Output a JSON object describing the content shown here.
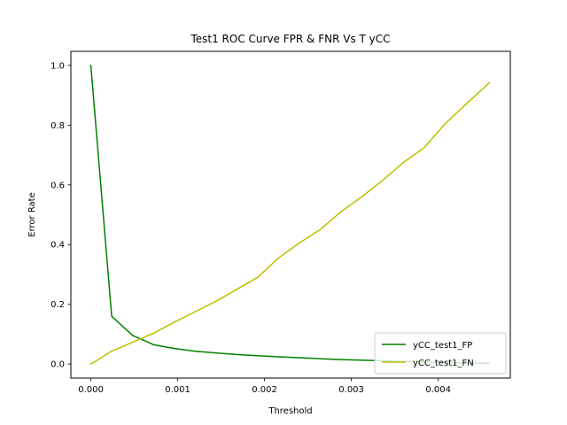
{
  "chart_data": {
    "type": "line",
    "title": "Test1 ROC Curve FPR & FNR Vs T yCC",
    "xlabel": "Threshold",
    "ylabel": "Error Rate",
    "xlim": [
      -0.00023,
      0.00483
    ],
    "ylim": [
      -0.047,
      1.047
    ],
    "xticks": [
      0.0,
      0.001,
      0.002,
      0.003,
      0.004
    ],
    "xtick_labels": [
      "0.000",
      "0.001",
      "0.002",
      "0.003",
      "0.004"
    ],
    "yticks": [
      0.0,
      0.2,
      0.4,
      0.6,
      0.8,
      1.0
    ],
    "ytick_labels": [
      "0.0",
      "0.2",
      "0.4",
      "0.6",
      "0.8",
      "1.0"
    ],
    "grid": false,
    "legend_position": "lower-right",
    "series": [
      {
        "name": "yCC_test1_FP",
        "color": "#008000",
        "x": [
          0.0,
          0.00024,
          0.00048,
          0.00072,
          0.00096,
          0.0012,
          0.00144,
          0.00168,
          0.00192,
          0.00216,
          0.0024,
          0.00264,
          0.00288,
          0.00312,
          0.00336,
          0.0036,
          0.00384,
          0.00408,
          0.00432,
          0.00459
        ],
        "values": [
          1.0,
          0.16,
          0.096,
          0.065,
          0.052,
          0.043,
          0.037,
          0.032,
          0.028,
          0.024,
          0.021,
          0.018,
          0.015,
          0.013,
          0.011,
          0.009,
          0.007,
          0.005,
          0.003,
          0.002
        ]
      },
      {
        "name": "yCC_test1_FN",
        "color": "#bfbf00",
        "x": [
          0.0,
          0.00024,
          0.00048,
          0.00072,
          0.00096,
          0.0012,
          0.00144,
          0.00168,
          0.00192,
          0.00216,
          0.0024,
          0.00264,
          0.00288,
          0.00312,
          0.00336,
          0.0036,
          0.00384,
          0.00408,
          0.00432,
          0.00459
        ],
        "values": [
          0.0,
          0.043,
          0.073,
          0.103,
          0.14,
          0.175,
          0.21,
          0.25,
          0.29,
          0.355,
          0.405,
          0.45,
          0.51,
          0.56,
          0.615,
          0.675,
          0.725,
          0.805,
          0.87,
          0.942
        ]
      }
    ]
  }
}
